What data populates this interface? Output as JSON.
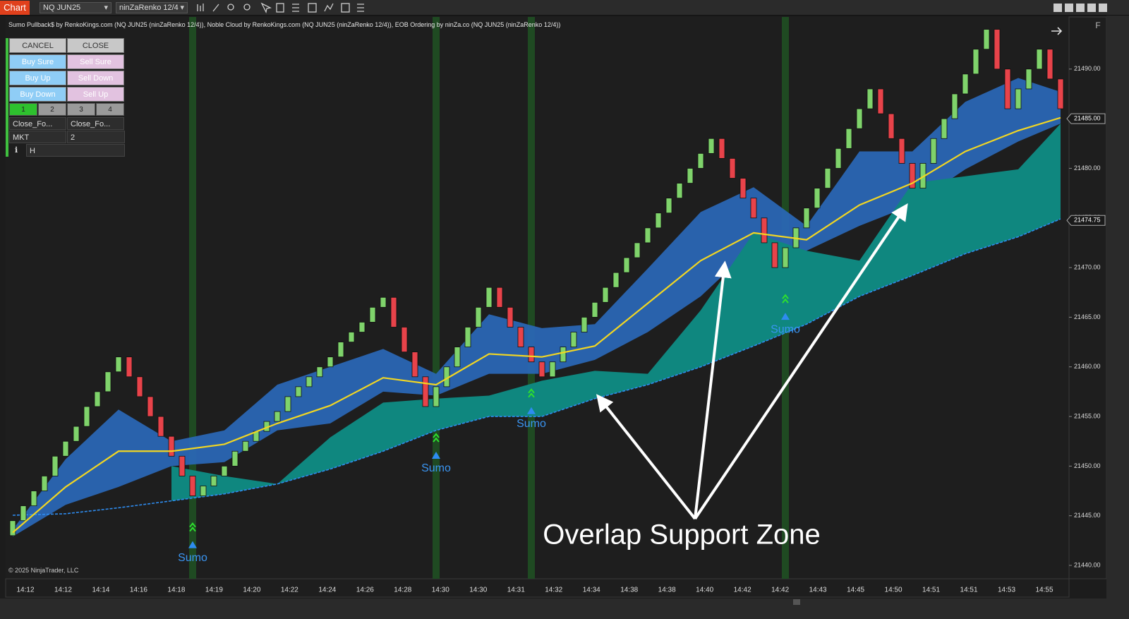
{
  "toolbar": {
    "chart_tab": "Chart",
    "instrument": "NQ JUN25",
    "bar_type": "ninZaRenko 12/4",
    "side_button": "F"
  },
  "indicator_header": "Sumo Pullback$ by RenkoKings.com (NQ JUN25 (ninZaRenko 12/4)), Noble Cloud by RenkoKings.com (NQ JUN25 (ninZaRenko 12/4)), EOB Ordering by ninZa.co (NQ JUN25 (ninZaRenko 12/4))",
  "order_panel": {
    "rows": [
      [
        "CANCEL",
        "CLOSE"
      ],
      [
        "Buy Sure",
        "Sell Sure"
      ],
      [
        "Buy Up",
        "Sell Down"
      ],
      [
        "Buy Down",
        "Sell Up"
      ]
    ],
    "quantity_tabs": [
      "1",
      "2",
      "3",
      "4"
    ],
    "close_modes": [
      "Close_Fo...",
      "Close_Fo..."
    ],
    "order_type": "MKT",
    "quantity": "2",
    "mode": "H"
  },
  "chart_data": {
    "type": "candlestick",
    "candles": [
      [
        21443,
        21444.5
      ],
      [
        21444.5,
        21446
      ],
      [
        21446,
        21447.5
      ],
      [
        21447.5,
        21449
      ],
      [
        21449,
        21451
      ],
      [
        21451,
        21452.5
      ],
      [
        21452.5,
        21454
      ],
      [
        21454,
        21456
      ],
      [
        21456,
        21457.5
      ],
      [
        21457.5,
        21459.5
      ],
      [
        21459.5,
        21461
      ],
      [
        21461,
        21459
      ],
      [
        21459,
        21457
      ],
      [
        21457,
        21455
      ],
      [
        21455,
        21453
      ],
      [
        21453,
        21451
      ],
      [
        21451,
        21449
      ],
      [
        21449,
        21447
      ],
      [
        21447,
        21448
      ],
      [
        21448,
        21449
      ],
      [
        21449,
        21450
      ],
      [
        21450,
        21451.5
      ],
      [
        21451.5,
        21452.5
      ],
      [
        21452.5,
        21453.5
      ],
      [
        21453.5,
        21454.5
      ],
      [
        21454.5,
        21455.5
      ],
      [
        21455.5,
        21457
      ],
      [
        21457,
        21458
      ],
      [
        21458,
        21459
      ],
      [
        21459,
        21460
      ],
      [
        21460,
        21461
      ],
      [
        21461,
        21462.5
      ],
      [
        21462.5,
        21463.5
      ],
      [
        21463.5,
        21464.5
      ],
      [
        21464.5,
        21466
      ],
      [
        21466,
        21467
      ],
      [
        21467,
        21464
      ],
      [
        21464,
        21461.5
      ],
      [
        21461.5,
        21459
      ],
      [
        21459,
        21456
      ],
      [
        21456,
        21458
      ],
      [
        21458,
        21460
      ],
      [
        21460,
        21462
      ],
      [
        21462,
        21464
      ],
      [
        21464,
        21466
      ],
      [
        21466,
        21468
      ],
      [
        21468,
        21466
      ],
      [
        21466,
        21464
      ],
      [
        21464,
        21462
      ],
      [
        21462,
        21460.5
      ],
      [
        21460.5,
        21459
      ],
      [
        21459,
        21460.5
      ],
      [
        21460.5,
        21462
      ],
      [
        21462,
        21463.5
      ],
      [
        21463.5,
        21465
      ],
      [
        21465,
        21466.5
      ],
      [
        21466.5,
        21468
      ],
      [
        21468,
        21469.5
      ],
      [
        21469.5,
        21471
      ],
      [
        21471,
        21472.5
      ],
      [
        21472.5,
        21474
      ],
      [
        21474,
        21475.5
      ],
      [
        21475.5,
        21477
      ],
      [
        21477,
        21478.5
      ],
      [
        21478.5,
        21480
      ],
      [
        21480,
        21481.5
      ],
      [
        21481.5,
        21483
      ],
      [
        21483,
        21481
      ],
      [
        21481,
        21479
      ],
      [
        21479,
        21477
      ],
      [
        21477,
        21475
      ],
      [
        21475,
        21472.5
      ],
      [
        21472.5,
        21470
      ],
      [
        21470,
        21472
      ],
      [
        21472,
        21474
      ],
      [
        21474,
        21476
      ],
      [
        21476,
        21478
      ],
      [
        21478,
        21480
      ],
      [
        21480,
        21482
      ],
      [
        21482,
        21484
      ],
      [
        21484,
        21486
      ],
      [
        21486,
        21488
      ],
      [
        21488,
        21485.5
      ],
      [
        21485.5,
        21483
      ],
      [
        21483,
        21480.5
      ],
      [
        21480.5,
        21478
      ],
      [
        21478,
        21480.5
      ],
      [
        21480.5,
        21483
      ],
      [
        21483,
        21485
      ],
      [
        21485,
        21487.5
      ],
      [
        21487.5,
        21489.5
      ],
      [
        21489.5,
        21492
      ],
      [
        21492,
        21494
      ],
      [
        21494,
        21490
      ],
      [
        21490,
        21486
      ],
      [
        21486,
        21488
      ],
      [
        21488,
        21490
      ],
      [
        21490,
        21492
      ],
      [
        21492,
        21489
      ],
      [
        21489,
        21486
      ]
    ],
    "up_color": "#7fd36b",
    "down_color": "#e8434a",
    "indicator_index": [
      0,
      5,
      10,
      15,
      20,
      25,
      30,
      35,
      40,
      45,
      50,
      55,
      60,
      65,
      70,
      75,
      80,
      85,
      90,
      95,
      99
    ],
    "trend_line": [
      21443.3,
      21447.9,
      21451.5,
      21451.5,
      21452.2,
      21454.3,
      21456.1,
      21458.9,
      21458.2,
      21461.3,
      21461,
      21462.1,
      21466.4,
      21470.7,
      21473.5,
      21472.8,
      21476.3,
      21478.5,
      21481.7,
      21483.8,
      21485.1
    ],
    "cloud_upper": [
      21443.6,
      21450.7,
      21455.7,
      21452.5,
      21453.6,
      21458.2,
      21460,
      21461.8,
      21459.3,
      21465.3,
      21463.9,
      21464.3,
      21469.9,
      21475.6,
      21478.1,
      21474.2,
      21481.7,
      21481.7,
      21486.7,
      21489.1,
      21487.7
    ],
    "cloud_lower": [
      21442.9,
      21446.1,
      21447.9,
      21450,
      21450.4,
      21453.6,
      21454.3,
      21457.5,
      21457.1,
      21459.3,
      21459.3,
      21460.7,
      21463.5,
      21467.1,
      21472.1,
      21471.7,
      21474.2,
      21476.3,
      21479.9,
      21482.7,
      21484.5
    ],
    "support_zone_top": [
      null,
      null,
      null,
      21450,
      21449,
      21448.2,
      21452.9,
      21456.4,
      21456.8,
      21457.1,
      21458.6,
      21459.6,
      21459.3,
      21465.7,
      21473.5,
      21471.7,
      21470.7,
      21478.5,
      21479.2,
      21479.9,
      21484.5
    ],
    "support_line": [
      21445.05,
      21445.2,
      21445.8,
      21446.5,
      21447.2,
      21448.2,
      21449.7,
      21451.5,
      21453.6,
      21455,
      21455,
      21456.8,
      21458.2,
      21460,
      21462.1,
      21464.3,
      21467.1,
      21469.2,
      21471.4,
      21473.1,
      21474.9
    ],
    "trend_color": "#f2d622",
    "cloud_color": "#2a66b4",
    "zone_color": "#0f877f",
    "support_color": "#2e8cf0",
    "signals": [
      {
        "index": 17,
        "label": "Sumo"
      },
      {
        "index": 40,
        "label": "Sumo"
      },
      {
        "index": 49,
        "label": "Sumo"
      },
      {
        "index": 73,
        "label": "Sumo"
      }
    ],
    "ylim": [
      21438.65,
      21495.25
    ],
    "yticks": [
      {
        "value": 21440,
        "label": "21440.00"
      },
      {
        "value": 21445,
        "label": "21445.00"
      },
      {
        "value": 21450,
        "label": "21450.00"
      },
      {
        "value": 21455,
        "label": "21455.00"
      },
      {
        "value": 21460,
        "label": "21460.00"
      },
      {
        "value": 21465,
        "label": "21465.00"
      },
      {
        "value": 21470,
        "label": "21470.00"
      },
      {
        "value": 21475,
        "label": "21475.00"
      },
      {
        "value": 21480,
        "label": "21480.00"
      },
      {
        "value": 21485,
        "label": "21485.00"
      },
      {
        "value": 21490,
        "label": "21490.00"
      }
    ],
    "price_markers": [
      {
        "value": 21485,
        "label": "21485.00"
      },
      {
        "value": 21474.75,
        "label": "21474.75"
      }
    ],
    "time_labels": [
      "14:12",
      "14:12",
      "14:14",
      "14:16",
      "14:18",
      "14:19",
      "14:20",
      "14:22",
      "14:24",
      "14:26",
      "14:28",
      "14:30",
      "14:30",
      "14:31",
      "14:32",
      "14:34",
      "14:38",
      "14:38",
      "14:40",
      "14:42",
      "14:42",
      "14:43",
      "14:45",
      "14:50",
      "14:51",
      "14:51",
      "14:53",
      "14:55"
    ]
  },
  "annotation": "Overlap Support Zone",
  "copyright": "© 2025 NinjaTrader, LLC"
}
